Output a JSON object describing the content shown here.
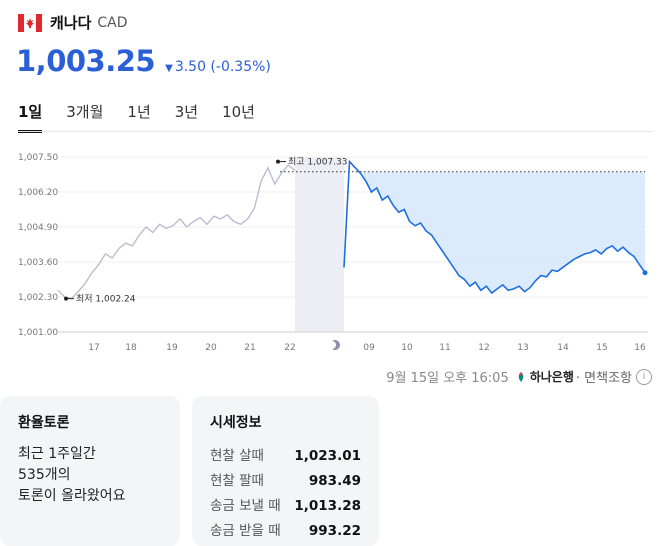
{
  "header": {
    "country": "캐나다",
    "code": "CAD",
    "flag_icon": "canada-flag-icon"
  },
  "price": {
    "value": "1,003.25",
    "change": "3.50 (-0.35%)",
    "direction": "down"
  },
  "tabs": [
    "1일",
    "3개월",
    "1년",
    "3년",
    "10년"
  ],
  "active_tab": "1일",
  "chart_data": {
    "type": "line",
    "y_ticks": [
      "1,007.50",
      "1,006.20",
      "1,004.90",
      "1,003.60",
      "1,002.30",
      "1,001.00"
    ],
    "y_range": [
      1001.0,
      1007.5
    ],
    "x_ticks": [
      "17",
      "18",
      "19",
      "20",
      "21",
      "22",
      "moon-icon",
      "09",
      "10",
      "11",
      "12",
      "13",
      "14",
      "15",
      "16"
    ],
    "high_label": "최고 1,007.33",
    "low_label": "최저 1,002.24",
    "high": 1007.33,
    "low": 1002.24,
    "reference_value": 1006.95,
    "history_series": [
      1002.55,
      1002.3,
      1002.24,
      1002.5,
      1002.8,
      1003.2,
      1003.5,
      1003.9,
      1003.75,
      1004.1,
      1004.3,
      1004.2,
      1004.6,
      1004.9,
      1004.7,
      1005.0,
      1004.85,
      1004.95,
      1005.2,
      1004.9,
      1005.1,
      1005.25,
      1005.0,
      1005.3,
      1005.2,
      1005.35,
      1005.1,
      1005.0,
      1005.2,
      1005.6,
      1006.6,
      1007.1,
      1006.5,
      1006.9,
      1007.2,
      1007.0
    ],
    "today_series": [
      1003.4,
      1007.33,
      1007.1,
      1006.9,
      1006.6,
      1006.2,
      1006.35,
      1005.9,
      1006.05,
      1005.7,
      1005.45,
      1005.55,
      1005.1,
      1004.95,
      1005.05,
      1004.75,
      1004.6,
      1004.3,
      1004.0,
      1003.7,
      1003.4,
      1003.1,
      1002.95,
      1002.7,
      1002.85,
      1002.55,
      1002.7,
      1002.45,
      1002.6,
      1002.75,
      1002.55,
      1002.6,
      1002.7,
      1002.5,
      1002.65,
      1002.9,
      1003.1,
      1003.05,
      1003.3,
      1003.25,
      1003.4,
      1003.55,
      1003.7,
      1003.8,
      1003.9,
      1003.95,
      1004.05,
      1003.9,
      1004.1,
      1004.2,
      1004.0,
      1004.15,
      1003.95,
      1003.8,
      1003.5,
      1003.2
    ]
  },
  "timestamp": "9월 15일 오후 16:05",
  "source": "하나은행",
  "disclaimer": "· 면책조항",
  "forum": {
    "title": "환율토론",
    "line1": "최근 1주일간",
    "line2": "535개의",
    "line3": "토론이 올라왔어요"
  },
  "quotes": {
    "title": "시세정보",
    "rows": [
      {
        "label": "현찰 살때",
        "value": "1,023.01"
      },
      {
        "label": "현찰 팔때",
        "value": "983.49"
      },
      {
        "label": "송금 보낼 때",
        "value": "1,013.28"
      },
      {
        "label": "송금 받을 때",
        "value": "993.22"
      }
    ]
  },
  "colors": {
    "accent": "#2a5fd6",
    "history_line": "#b9bdd1",
    "today_line": "#1f6fe0",
    "fill": "#d6e7fb",
    "high_marker": "#e54848"
  }
}
